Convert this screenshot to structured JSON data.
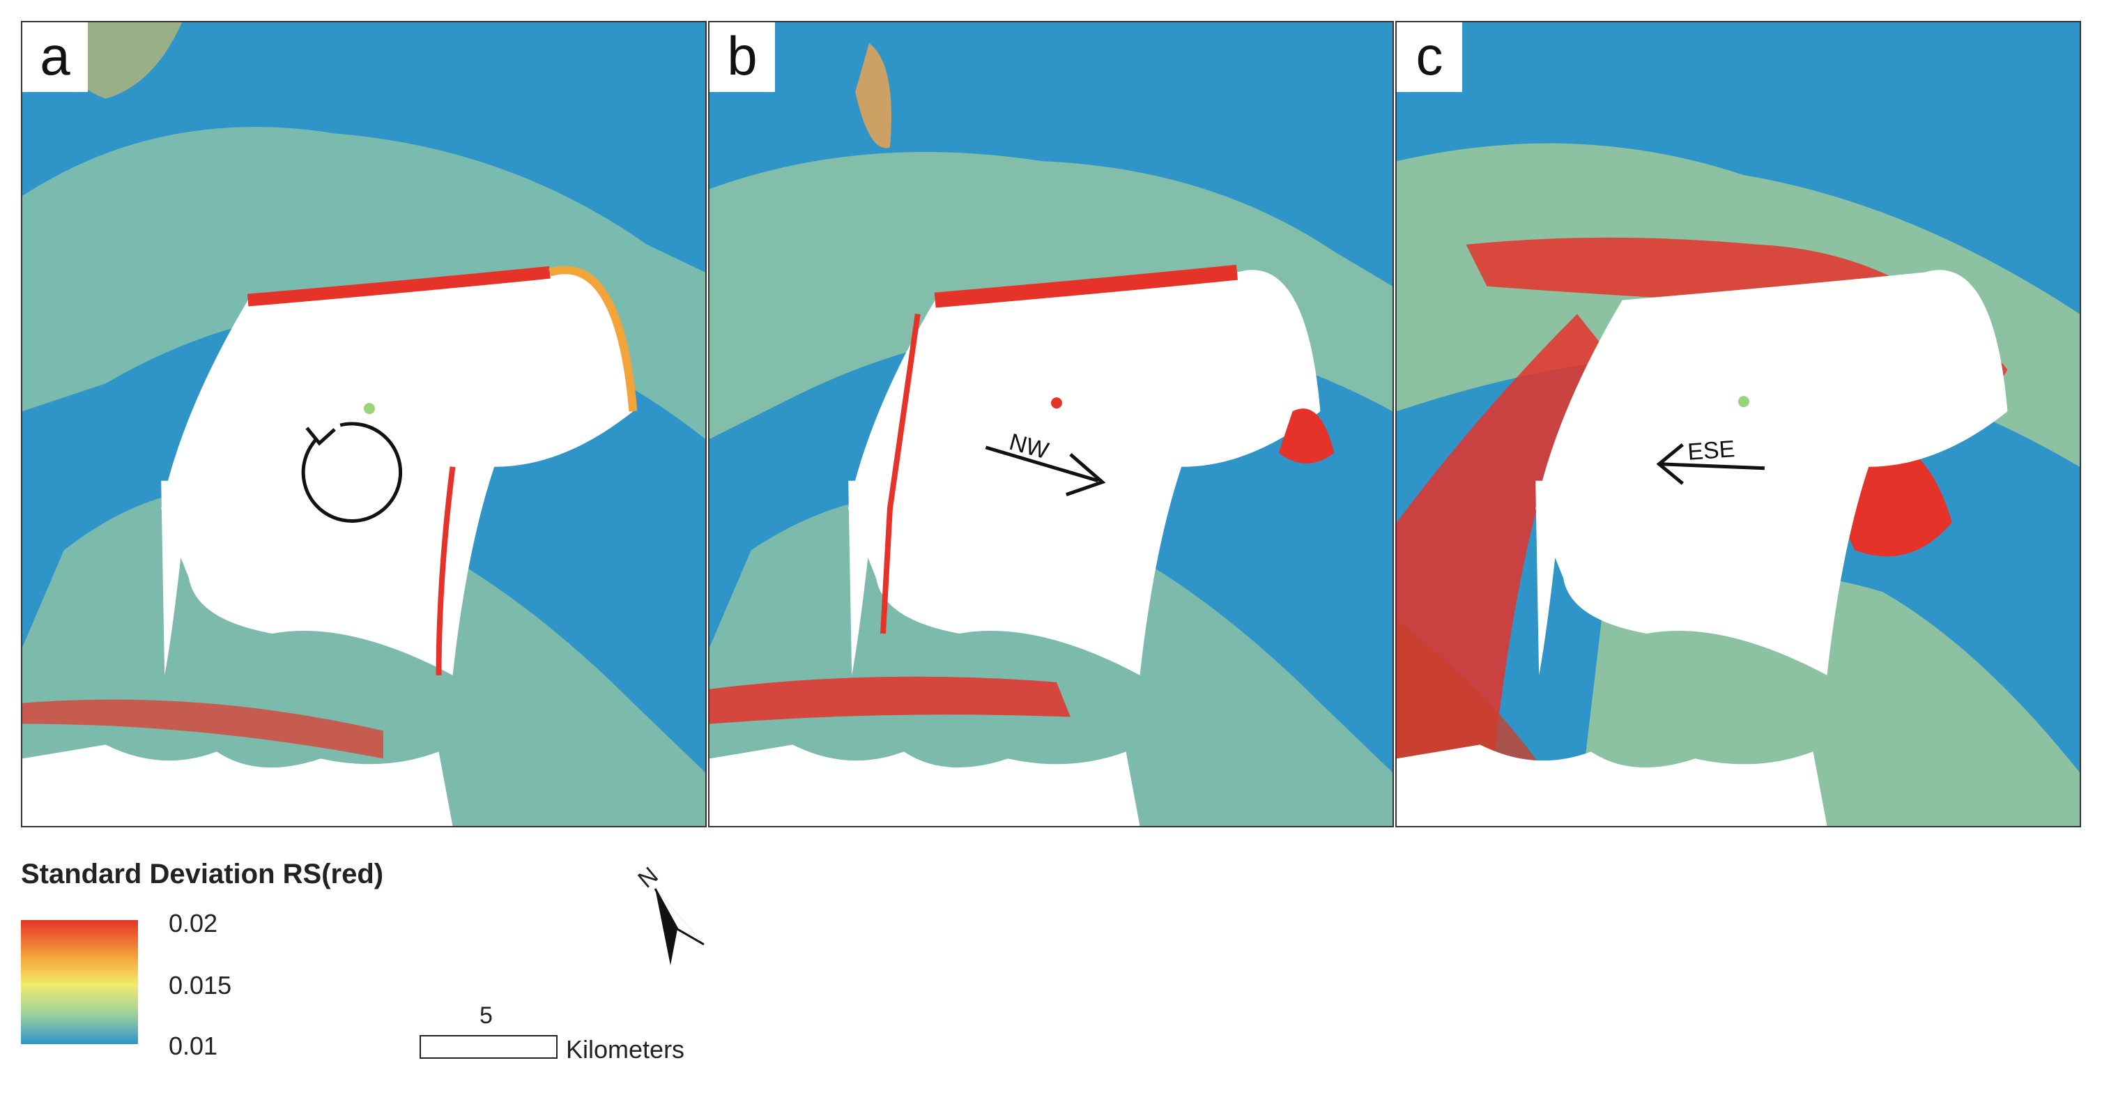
{
  "panels": [
    {
      "label": "a",
      "arrow_label": ""
    },
    {
      "label": "b",
      "arrow_label": "NW"
    },
    {
      "label": "c",
      "arrow_label": "ESE"
    }
  ],
  "legend": {
    "title": "Standard Deviation RS(red)",
    "max": "0.02",
    "mid": "0.015",
    "min": "0.01",
    "colors": {
      "high": "#e5332a",
      "mid": "#f2ea6c",
      "low": "#2f95c8"
    }
  },
  "north_arrow": {
    "label": "N"
  },
  "scale_bar": {
    "value": "5",
    "unit": "Kilometers"
  }
}
